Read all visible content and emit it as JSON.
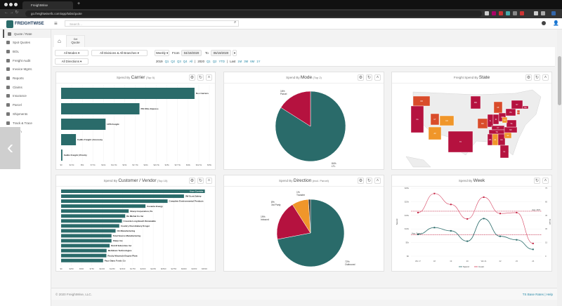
{
  "browser": {
    "tab_title": "FreightWise",
    "url": "go.freightwisellc.com/app/tabs/quote"
  },
  "header": {
    "logo": "FREIGHTWISE",
    "search_placeholder": "Search..."
  },
  "sidebar": {
    "items": [
      {
        "label": "Quote / Rate"
      },
      {
        "label": "Spot Quotes"
      },
      {
        "label": "BOL"
      },
      {
        "label": "Freight Audit"
      },
      {
        "label": "Invoice Mgmt."
      },
      {
        "label": "Reports"
      },
      {
        "label": "Claims"
      },
      {
        "label": "Insurance"
      },
      {
        "label": "Parcel"
      },
      {
        "label": "Shipments"
      },
      {
        "label": "Track & Trace"
      },
      {
        "label": "Admin"
      }
    ]
  },
  "tabs": {
    "quote_label": "Quote",
    "quote_sub": "Get"
  },
  "filters": {
    "modes": "All Modes",
    "divisions": "All Divisions & All Branches",
    "directions": "All Directions",
    "interval": "Weekly",
    "from_label": "From",
    "from": "04/19/2020",
    "to_label": "To",
    "to": "06/19/2020",
    "year1": "2019",
    "year1_links": [
      "Q1",
      "Q2",
      "Q3",
      "Q4",
      "All"
    ],
    "year2": "2020",
    "year2_links": [
      "Q1",
      "Q2",
      "YTD"
    ],
    "last_label": "Last",
    "last_links": [
      "1M",
      "3M",
      "6M",
      "1Y"
    ]
  },
  "panels": {
    "carrier": {
      "prefix": "Spend By",
      "title": "Carrier",
      "suffix": "(Top 5)"
    },
    "mode": {
      "prefix": "Spend By",
      "title": "Mode",
      "suffix": "(Top 2)"
    },
    "state": {
      "prefix": "Freight Spend By",
      "title": "State",
      "suffix": ""
    },
    "customer": {
      "prefix": "Spend By",
      "title": "Customer / Vendor",
      "suffix": "(Top 15)"
    },
    "direction": {
      "prefix": "Spend By",
      "title": "Direction",
      "suffix": "(excl. Parcel)"
    },
    "week": {
      "prefix": "Spend By",
      "title": "Week",
      "suffix": ""
    }
  },
  "chart_data": [
    {
      "id": "carrier",
      "type": "bar",
      "orientation": "horizontal",
      "categories": [
        "R+L Carriers",
        "Pitt Ohio Express",
        "UPS Freight",
        "FedEx Freight | Economy",
        "FedEx Freight | Priority"
      ],
      "values": [
        31500,
        18500,
        10500,
        3500,
        300
      ],
      "xlim": [
        0,
        35000
      ],
      "xticks": [
        "$0",
        "$2.5k",
        "$5k",
        "$7.5k",
        "$10k",
        "$12.5k",
        "$15k",
        "$17.5k",
        "$20k",
        "$22.5k",
        "$25k",
        "$27.5k",
        "$30k",
        "$32.5k",
        "$35k"
      ]
    },
    {
      "id": "mode",
      "type": "pie",
      "slices": [
        {
          "label": "LTL",
          "value": 84,
          "text": "84%"
        },
        {
          "label": "Parcel",
          "value": 16,
          "text": "16%"
        }
      ]
    },
    {
      "id": "customer",
      "type": "bar",
      "orientation": "horizontal",
      "categories": [
        "User Corridor",
        "3W Scott Safety",
        "Complete Environmental Products",
        "Covanta Energy",
        "Sharp Corporation, Pa",
        "Re Michel Co Inc",
        "Covanta Long Beach Renewable",
        "Country Oven Bakery Kroger",
        "CE Manufacturing",
        "Total Source Manufacturing",
        "Sharp Inc.",
        "M & M Industries Inc",
        "Meltdown Technologies",
        "Rocky Mountain Engine Plant",
        "Pace Dairy Foods Co"
      ],
      "values": [
        3510,
        3000,
        2600,
        2060,
        1650,
        1565,
        1485,
        1420,
        1330,
        1230,
        1230,
        1185,
        1110,
        1105,
        1025
      ],
      "xlim": [
        0,
        3500
      ],
      "xticks": [
        "$0",
        "$250",
        "$500",
        "$750",
        "$1000",
        "$1250",
        "$1500",
        "$1750",
        "$2000",
        "$2250",
        "$2500",
        "$2750",
        "$3000",
        "$3250",
        "$3500"
      ]
    },
    {
      "id": "direction",
      "type": "pie",
      "slices": [
        {
          "label": "Outbound",
          "value": 72,
          "text": "72%"
        },
        {
          "label": "Inbound",
          "value": 19,
          "text": "19%"
        },
        {
          "label": "3rd Party",
          "value": 8,
          "text": "8%"
        },
        {
          "label": "Transfer",
          "value": 1,
          "text": "1%"
        }
      ]
    },
    {
      "id": "week",
      "type": "line",
      "categories": [
        "Wk 17",
        "18",
        "19",
        "20",
        "Wk 21",
        "22",
        "23",
        "24"
      ],
      "series": [
        {
          "name": "Spend",
          "axis": "left",
          "values": [
            8000,
            10500,
            9300,
            5500,
            13800,
            7300,
            6000,
            2500
          ]
        },
        {
          "name": "Count",
          "axis": "right",
          "values": [
            48,
            69,
            57,
            41,
            65,
            47,
            48,
            14
          ]
        }
      ],
      "ylim_left": [
        0,
        25000
      ],
      "ylim_right": [
        0,
        75
      ],
      "yticks_left": [
        "$0",
        "$5k",
        "$10k",
        "$15k",
        "$20k",
        "$25k"
      ],
      "yticks_right": [
        "0",
        "15",
        "30",
        "45",
        "60",
        "75"
      ],
      "ylabel_left": "Spend",
      "ylabel_right": "Count",
      "avg_count": 49.5,
      "avg_count_label": "Avg: 49.5",
      "avg_spend": 7900,
      "avg_spend_label": "Avg: Spend"
    },
    {
      "id": "state",
      "type": "map",
      "states": [
        "OR",
        "CA",
        "UT",
        "CO",
        "AZ",
        "TX",
        "MN",
        "MI",
        "MO",
        "IL",
        "IN",
        "OH",
        "PA",
        "NY",
        "KY",
        "TN",
        "MS",
        "AL",
        "GA",
        "SC",
        "NC",
        "VA",
        "WV",
        "FL",
        "MA",
        "NJ"
      ]
    }
  ],
  "colors": {
    "teal": "#2a6b6a",
    "crimson": "#b5123f",
    "orange": "#f0962a",
    "red_orange": "#d94c2b",
    "dark": "#333333",
    "count": "#d6405e"
  },
  "footer": {
    "copyright": "© 2020 FreightWise, LLC.",
    "links": [
      "TS Base Rates",
      "Help"
    ]
  }
}
